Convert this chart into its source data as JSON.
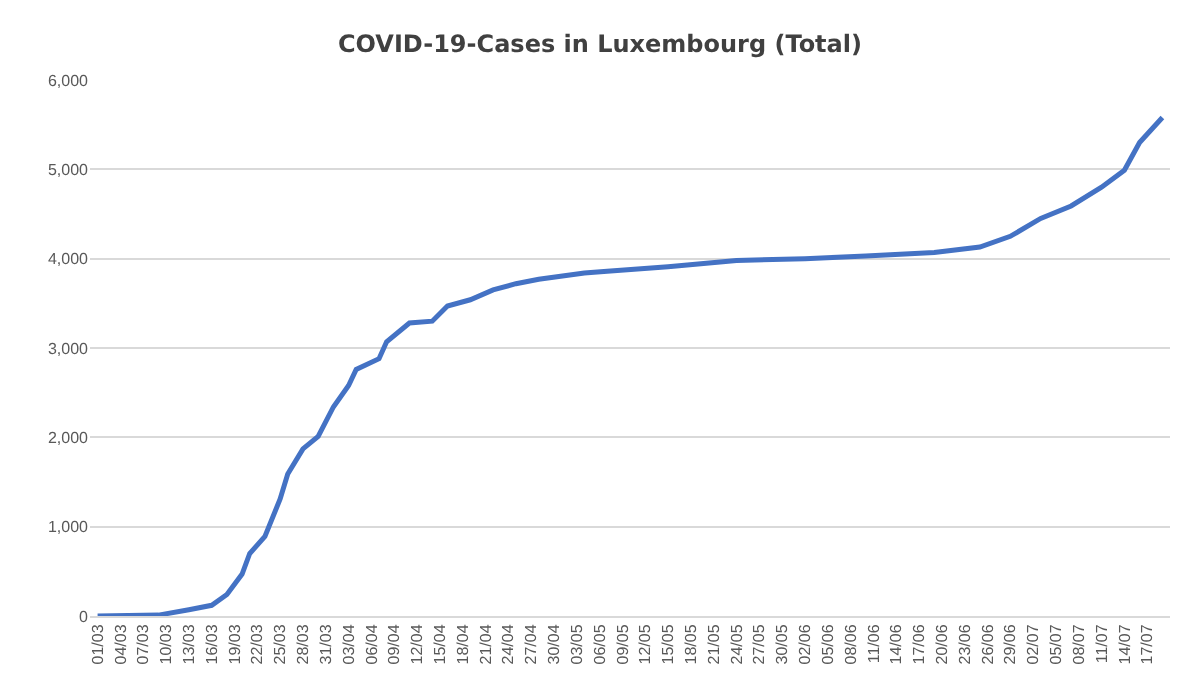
{
  "chart_data": {
    "type": "line",
    "title": "COVID-19-Cases in Luxembourg (Total)",
    "color": "#4472c4",
    "grid": "y",
    "line_style": "solid",
    "x": [
      "--03-01",
      "--03-09",
      "--03-13",
      "--03-16",
      "--03-18",
      "--03-20",
      "--03-21",
      "--03-23",
      "--03-25",
      "--03-26",
      "--03-28",
      "--03-30",
      "--04-01",
      "--04-03",
      "--04-04",
      "--04-07",
      "--04-08",
      "--04-11",
      "--04-14",
      "--04-16",
      "--04-19",
      "--04-22",
      "--04-25",
      "--04-28",
      "--05-04",
      "--05-07",
      "--05-15",
      "--05-24",
      "--06-02",
      "--06-10",
      "--06-19",
      "--06-25",
      "--06-29",
      "--07-03",
      "--07-07",
      "--07-11",
      "--07-14",
      "--07-16",
      "--07-19"
    ],
    "values": [
      0,
      10,
      70,
      120,
      240,
      470,
      700,
      890,
      1310,
      1590,
      1870,
      2010,
      2340,
      2580,
      2760,
      2880,
      3070,
      3280,
      3300,
      3470,
      3540,
      3650,
      3720,
      3770,
      3840,
      3860,
      3910,
      3980,
      4000,
      4030,
      4070,
      4130,
      4250,
      4450,
      4590,
      4800,
      4990,
      5300,
      5580
    ],
    "xlim": [
      "--02-29",
      "--07-20"
    ],
    "xticks": [
      {
        "value": "--03-01",
        "label": "01/03"
      },
      {
        "value": "--03-04",
        "label": "04/03"
      },
      {
        "value": "--03-07",
        "label": "07/03"
      },
      {
        "value": "--03-10",
        "label": "10/03"
      },
      {
        "value": "--03-13",
        "label": "13/03"
      },
      {
        "value": "--03-16",
        "label": "16/03"
      },
      {
        "value": "--03-19",
        "label": "19/03"
      },
      {
        "value": "--03-22",
        "label": "22/03"
      },
      {
        "value": "--03-25",
        "label": "25/03"
      },
      {
        "value": "--03-28",
        "label": "28/03"
      },
      {
        "value": "--03-31",
        "label": "31/03"
      },
      {
        "value": "--04-03",
        "label": "03/04"
      },
      {
        "value": "--04-06",
        "label": "06/04"
      },
      {
        "value": "--04-09",
        "label": "09/04"
      },
      {
        "value": "--04-12",
        "label": "12/04"
      },
      {
        "value": "--04-15",
        "label": "15/04"
      },
      {
        "value": "--04-18",
        "label": "18/04"
      },
      {
        "value": "--04-21",
        "label": "21/04"
      },
      {
        "value": "--04-24",
        "label": "24/04"
      },
      {
        "value": "--04-27",
        "label": "27/04"
      },
      {
        "value": "--04-30",
        "label": "30/04"
      },
      {
        "value": "--05-03",
        "label": "03/05"
      },
      {
        "value": "--05-06",
        "label": "06/05"
      },
      {
        "value": "--05-09",
        "label": "09/05"
      },
      {
        "value": "--05-12",
        "label": "12/05"
      },
      {
        "value": "--05-15",
        "label": "15/05"
      },
      {
        "value": "--05-18",
        "label": "18/05"
      },
      {
        "value": "--05-21",
        "label": "21/05"
      },
      {
        "value": "--05-24",
        "label": "24/05"
      },
      {
        "value": "--05-27",
        "label": "27/05"
      },
      {
        "value": "--05-30",
        "label": "30/05"
      },
      {
        "value": "--06-02",
        "label": "02/06"
      },
      {
        "value": "--06-05",
        "label": "05/06"
      },
      {
        "value": "--06-08",
        "label": "08/06"
      },
      {
        "value": "--06-11",
        "label": "11/06"
      },
      {
        "value": "--06-14",
        "label": "14/06"
      },
      {
        "value": "--06-17",
        "label": "17/06"
      },
      {
        "value": "--06-20",
        "label": "20/06"
      },
      {
        "value": "--06-23",
        "label": "23/06"
      },
      {
        "value": "--06-26",
        "label": "26/06"
      },
      {
        "value": "--06-29",
        "label": "29/06"
      },
      {
        "value": "--07-02",
        "label": "02/07"
      },
      {
        "value": "--07-05",
        "label": "05/07"
      },
      {
        "value": "--07-08",
        "label": "08/07"
      },
      {
        "value": "--07-11",
        "label": "11/07"
      },
      {
        "value": "--07-14",
        "label": "14/07"
      },
      {
        "value": "--07-17",
        "label": "17/07"
      }
    ],
    "ylim": [
      0,
      6000
    ],
    "yticks": [
      0,
      {
        "value": 1000,
        "label": "1,000"
      },
      {
        "value": 2000,
        "label": "2,000"
      },
      {
        "value": 3000,
        "label": "3,000"
      },
      {
        "value": 4000,
        "label": "4,000"
      },
      {
        "value": 5000,
        "label": "5,000"
      },
      {
        "value": 6000,
        "label": "6,000"
      }
    ]
  }
}
